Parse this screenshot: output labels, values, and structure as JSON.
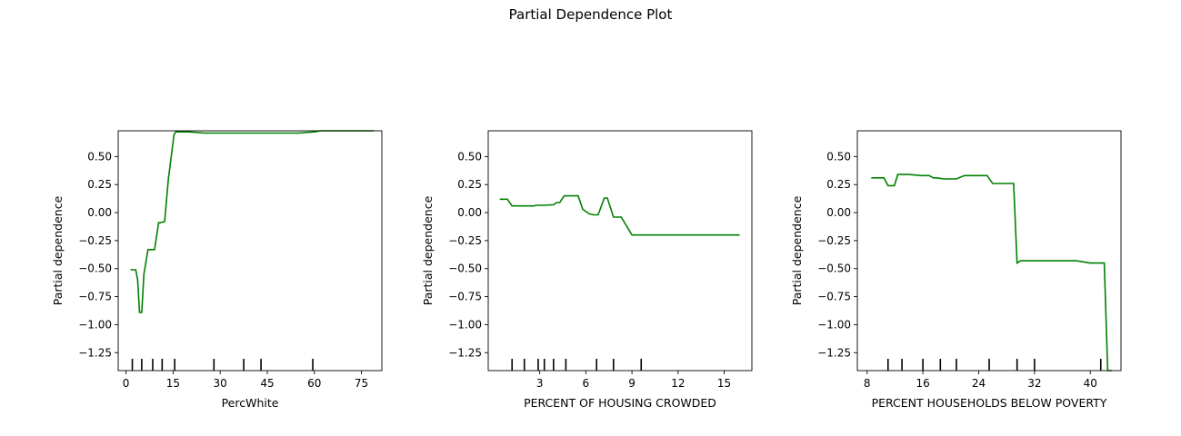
{
  "suptitle": "Partial Dependence Plot",
  "line_color": "#008000",
  "chart_data": [
    {
      "type": "line",
      "xlabel": "PercWhite",
      "ylabel": "Partial dependence",
      "xlim": [
        -2.5,
        81.5
      ],
      "ylim": [
        -1.41,
        0.73
      ],
      "xticks": [
        0,
        15,
        30,
        45,
        60,
        75
      ],
      "yticks": [
        0.5,
        0.25,
        0.0,
        -0.25,
        -0.5,
        -0.75,
        -1.0,
        -1.25
      ],
      "ytick_labels": [
        "0.50",
        "0.25",
        "0.00",
        "−0.25",
        "−0.50",
        "−0.75",
        "−1.00",
        "−1.25"
      ],
      "x": [
        1.4,
        3.1,
        3.7,
        4.3,
        5.0,
        5.7,
        7.0,
        8.4,
        9.1,
        10.4,
        10.9,
        12.3,
        13.5,
        15.3,
        15.9,
        17.5,
        20,
        25,
        30,
        40,
        50,
        55,
        60,
        62,
        70,
        75,
        79
      ],
      "y": [
        -0.51,
        -0.51,
        -0.6,
        -0.89,
        -0.89,
        -0.55,
        -0.33,
        -0.33,
        -0.33,
        -0.09,
        -0.09,
        -0.08,
        0.3,
        0.7,
        0.72,
        0.72,
        0.72,
        0.71,
        0.71,
        0.71,
        0.71,
        0.71,
        0.72,
        0.73,
        0.73,
        0.73,
        0.73
      ],
      "rug": [
        2,
        5,
        8.5,
        11.5,
        15.5,
        28,
        37.5,
        43,
        59.5
      ]
    },
    {
      "type": "line",
      "xlabel": "PERCENT OF HOUSING CROWDED",
      "ylabel": "Partial dependence",
      "xlim": [
        -0.35,
        16.8
      ],
      "ylim": [
        -1.41,
        0.73
      ],
      "xticks": [
        3,
        6,
        9,
        12,
        15
      ],
      "yticks": [
        0.5,
        0.25,
        0.0,
        -0.25,
        -0.5,
        -0.75,
        -1.0,
        -1.25
      ],
      "ytick_labels": [
        "0.50",
        "0.25",
        "0.00",
        "−0.25",
        "−0.50",
        "−0.75",
        "−1.00",
        "−1.25"
      ],
      "x": [
        0.4,
        0.9,
        1.2,
        1.6,
        2.3,
        2.6,
        2.8,
        3.3,
        3.9,
        4.1,
        4.3,
        4.6,
        5.1,
        5.5,
        5.8,
        6.2,
        6.5,
        6.8,
        7.2,
        7.4,
        7.8,
        8.1,
        8.3,
        9.0,
        12.0,
        15.0,
        16.0
      ],
      "y": [
        0.12,
        0.12,
        0.06,
        0.06,
        0.06,
        0.06,
        0.065,
        0.065,
        0.07,
        0.09,
        0.09,
        0.15,
        0.15,
        0.15,
        0.03,
        -0.01,
        -0.02,
        -0.02,
        0.13,
        0.13,
        -0.04,
        -0.04,
        -0.04,
        -0.2,
        -0.2,
        -0.2,
        -0.2
      ],
      "rug": [
        1.2,
        2.0,
        2.9,
        3.3,
        3.9,
        4.7,
        6.7,
        7.8,
        9.6
      ]
    },
    {
      "type": "line",
      "xlabel": "PERCENT HOUSEHOLDS BELOW POVERTY",
      "ylabel": "Partial dependence",
      "xlim": [
        6.6,
        44.4
      ],
      "ylim": [
        -1.41,
        0.73
      ],
      "xticks": [
        8,
        16,
        24,
        32,
        40
      ],
      "yticks": [
        0.5,
        0.25,
        0.0,
        -0.25,
        -0.5,
        -0.75,
        -1.0,
        -1.25
      ],
      "ytick_labels": [
        "0.50",
        "0.25",
        "0.00",
        "−0.25",
        "−0.50",
        "−0.75",
        "−1.00",
        "−1.25"
      ],
      "x": [
        8.6,
        10.4,
        11.0,
        11.9,
        12.4,
        13.2,
        14.0,
        15.8,
        16.9,
        17.5,
        18.0,
        19.0,
        19.5,
        20.8,
        21.5,
        22.0,
        23.0,
        24.3,
        25.2,
        26.0,
        28.0,
        29.0,
        29.5,
        30.0,
        32.0,
        35.0,
        38.0,
        40.0,
        41.0,
        42.0,
        42.5,
        43.1
      ],
      "y": [
        0.31,
        0.31,
        0.24,
        0.24,
        0.34,
        0.34,
        0.34,
        0.33,
        0.33,
        0.31,
        0.31,
        0.3,
        0.3,
        0.3,
        0.32,
        0.33,
        0.33,
        0.33,
        0.33,
        0.26,
        0.26,
        0.26,
        -0.45,
        -0.43,
        -0.43,
        -0.43,
        -0.43,
        -0.45,
        -0.45,
        -0.45,
        -1.41,
        -1.41
      ],
      "rug": [
        11,
        13,
        16,
        18.5,
        20.8,
        25.5,
        29.5,
        32,
        41.5
      ]
    }
  ]
}
